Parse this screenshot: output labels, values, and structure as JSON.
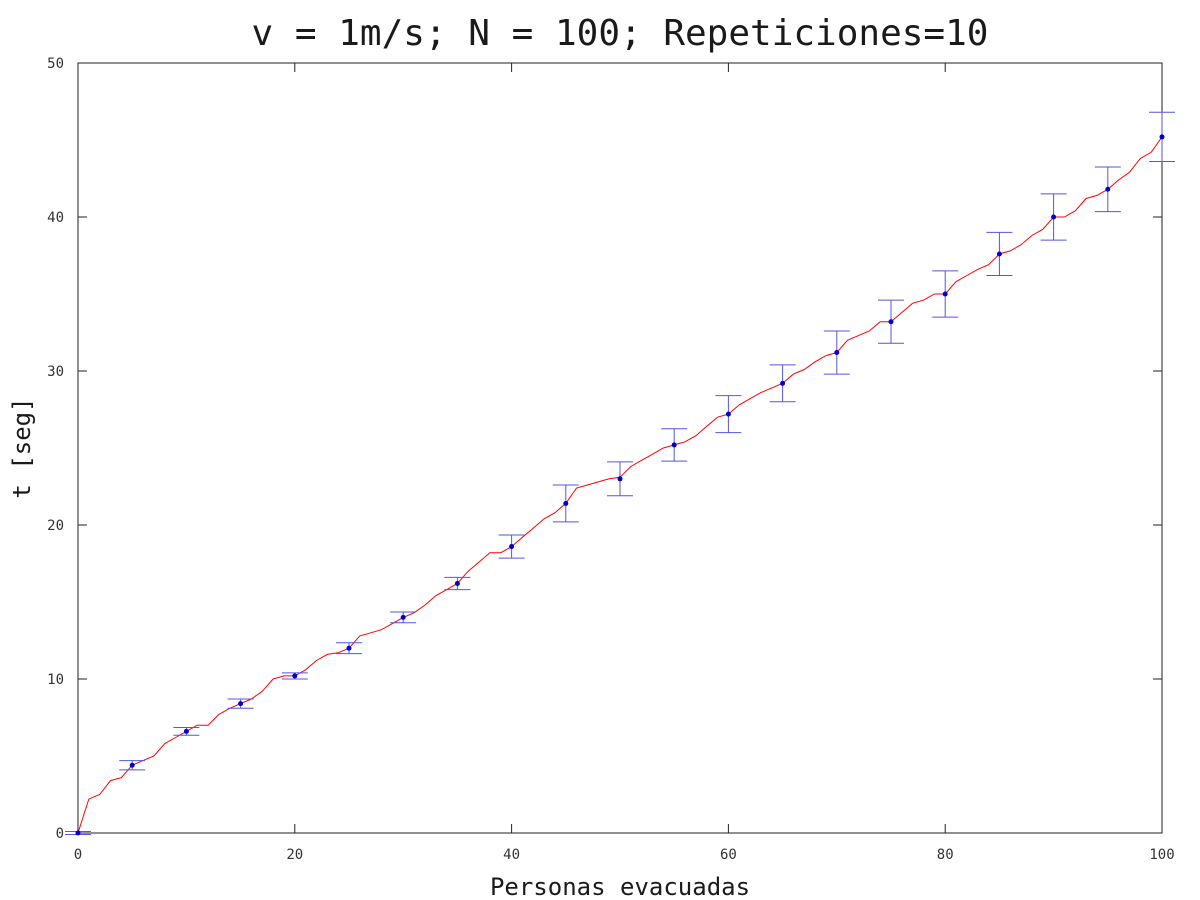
{
  "chart_data": {
    "type": "line",
    "title": "v = 1m/s; N = 100; Repeticiones=10",
    "xlabel": "Personas evacuadas",
    "ylabel": "t [seg]",
    "xlim": [
      0,
      100
    ],
    "ylim": [
      0,
      50
    ],
    "xticks": [
      0,
      20,
      40,
      60,
      80,
      100
    ],
    "yticks": [
      0,
      10,
      20,
      30,
      40,
      50
    ],
    "xtick_labels": [
      "0",
      "20",
      "40",
      "60",
      "80",
      "100"
    ],
    "ytick_labels": [
      "0",
      "10",
      "20",
      "30",
      "40",
      "50"
    ],
    "grid": false,
    "series": [
      {
        "kind": "line",
        "color": "#ff0000",
        "x": [
          0,
          1,
          2,
          3,
          4,
          5,
          6,
          7,
          8,
          9,
          10,
          11,
          12,
          13,
          14,
          15,
          16,
          17,
          18,
          19,
          20,
          21,
          22,
          23,
          24,
          25,
          26,
          27,
          28,
          29,
          30,
          31,
          32,
          33,
          34,
          35,
          36,
          37,
          38,
          39,
          40,
          41,
          42,
          43,
          44,
          45,
          46,
          47,
          48,
          49,
          50,
          51,
          52,
          53,
          54,
          55,
          56,
          57,
          58,
          59,
          60,
          61,
          62,
          63,
          64,
          65,
          66,
          67,
          68,
          69,
          70,
          71,
          72,
          73,
          74,
          75,
          76,
          77,
          78,
          79,
          80,
          81,
          82,
          83,
          84,
          85,
          86,
          87,
          88,
          89,
          90,
          91,
          92,
          93,
          94,
          95,
          96,
          97,
          98,
          99,
          100
        ],
        "y": [
          0,
          2.2,
          2.5,
          3.4,
          3.6,
          4.4,
          4.7,
          5.0,
          5.8,
          6.2,
          6.6,
          7.0,
          7.0,
          7.7,
          8.1,
          8.4,
          8.7,
          9.2,
          10.0,
          10.2,
          10.2,
          10.6,
          11.2,
          11.6,
          11.7,
          12.0,
          12.8,
          13.0,
          13.2,
          13.6,
          14.0,
          14.3,
          14.8,
          15.4,
          15.8,
          16.2,
          17.0,
          17.6,
          18.2,
          18.2,
          18.6,
          19.2,
          19.8,
          20.4,
          20.8,
          21.4,
          22.4,
          22.6,
          22.8,
          23.0,
          23.1,
          23.8,
          24.2,
          24.6,
          25.0,
          25.2,
          25.4,
          25.8,
          26.4,
          27.0,
          27.2,
          27.8,
          28.2,
          28.6,
          28.9,
          29.2,
          29.8,
          30.1,
          30.6,
          31.0,
          31.2,
          32.0,
          32.3,
          32.6,
          33.2,
          33.2,
          33.8,
          34.4,
          34.6,
          35.0,
          35.0,
          35.8,
          36.2,
          36.6,
          36.9,
          37.6,
          37.8,
          38.2,
          38.8,
          39.2,
          40.0,
          40.0,
          40.4,
          41.2,
          41.4,
          41.8,
          42.4,
          42.9,
          43.8,
          44.2,
          45.2
        ]
      },
      {
        "kind": "errorbar",
        "color": "#0000cc",
        "errcolor": "#5555dd",
        "x": [
          0,
          5,
          10,
          15,
          20,
          25,
          30,
          35,
          40,
          45,
          50,
          55,
          60,
          65,
          70,
          75,
          80,
          85,
          90,
          95,
          100
        ],
        "y": [
          0,
          4.4,
          6.6,
          8.4,
          10.2,
          12.0,
          14.0,
          16.2,
          18.6,
          21.4,
          23.0,
          25.2,
          27.2,
          29.2,
          31.2,
          33.2,
          35.0,
          37.6,
          40.0,
          41.8,
          45.2
        ],
        "err": [
          0.1,
          0.3,
          0.25,
          0.3,
          0.2,
          0.35,
          0.35,
          0.4,
          0.75,
          1.2,
          1.1,
          1.05,
          1.2,
          1.2,
          1.4,
          1.4,
          1.5,
          1.4,
          1.5,
          1.45,
          1.6
        ]
      }
    ]
  }
}
